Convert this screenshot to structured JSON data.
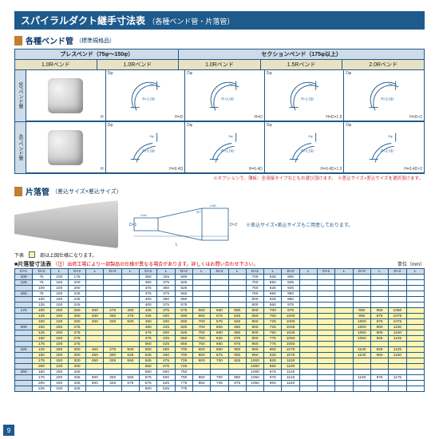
{
  "page_number": "9",
  "colors": {
    "brand_blue": "#1e5a8c",
    "accent_ochre": "#c08030",
    "header_cream": "#e8e2c4",
    "header_blue": "#cddce8",
    "highlight_yellow": "#fff4b0",
    "warn_red": "#c00"
  },
  "title": "スパイラルダクト継手寸法表",
  "subtitle": "（各種ベンド管・片落管）",
  "section_bend": {
    "title": "各種ベンド管",
    "note": "（標準規格品）",
    "group1": {
      "label": "プレスベンド（75φ〜150φ）",
      "cols": [
        {
          "sub": "1.0Rベンド"
        },
        {
          "sub": "1.0Rベンド"
        }
      ]
    },
    "group2": {
      "label": "セクションベンド（175φ以上）",
      "cols": [
        {
          "sub": "1.0Rベンド"
        },
        {
          "sub": "1.5Rベンド"
        },
        {
          "sub": "2.0Rベンド"
        }
      ]
    },
    "row_labels": [
      "90°ベンド管",
      "45°ベンド管"
    ],
    "cells": {
      "r90": [
        {
          "type": "photo",
          "toplab": "",
          "sub": "H"
        },
        {
          "type": "draw",
          "param": "R=1.0D",
          "sub": "H=D"
        },
        {
          "type": "draw",
          "param": "R=1.0D",
          "sub": "H=D"
        },
        {
          "type": "draw",
          "param": "R=1.5D",
          "sub": "H=D×1.5"
        },
        {
          "type": "draw",
          "param": "R=2.0D",
          "sub": "H=D×2"
        }
      ],
      "r45": [
        {
          "type": "photo",
          "toplab": "",
          "sub": "H"
        },
        {
          "type": "draw",
          "param": "R=1.0D",
          "sub": "H=0.4D"
        },
        {
          "type": "draw",
          "param": "R=1.0D",
          "sub": "H=0.4D"
        },
        {
          "type": "draw",
          "param": "R=1.5D",
          "sub": "H=0.4D×1.5"
        },
        {
          "type": "draw",
          "param": "R=2.0D",
          "sub": "H=0.4D×2"
        }
      ]
    },
    "foot_note": "※オプションで、薄板：全溶接タイプなどもお選び頂けます。　※差込サイズ×差込サイズを選択頂けます。"
  },
  "section_reducer": {
    "title": "片落管",
    "note": "（差込サイズ×差込サイズ）",
    "legend_label": "下表",
    "legend_note": "部は上図仕様になります。",
    "side_note": "※差込サイズ×差込サイズもご用意しております。",
    "diagram_labels": {
      "D1": "D×1",
      "D2": "D×2",
      "L": "L",
      "l1": "l=50",
      "l2": "l=50",
      "deg": "20°"
    }
  },
  "table": {
    "title": "■片落管寸法表",
    "warn": "（注）出荷工場により一部製品の仕様が異なる場合があります。詳しくはお問い合わせ下さい。",
    "unit": "単位（mm）",
    "col_groups": 6,
    "heads": [
      "D×1",
      "D×2",
      "L"
    ],
    "rows": [
      {
        "d1": "100",
        "hl": 0,
        "cells": [
          "75",
          "100",
          "175",
          "",
          "",
          "",
          "350",
          "325",
          "500",
          "",
          "",
          "",
          "700",
          "625",
          "900",
          "",
          "",
          "",
          "",
          "",
          "",
          ""
        ]
      },
      {
        "d1": "125",
        "hl": 0,
        "cells": [
          "75",
          "150",
          "200",
          "",
          "",
          "",
          "350",
          "375",
          "525",
          "",
          "",
          "",
          "700",
          "650",
          "925",
          "",
          "",
          "",
          "",
          "",
          "",
          ""
        ]
      },
      {
        "d1": "",
        "hl": 0,
        "cells": [
          "100",
          "100",
          "200",
          "",
          "",
          "",
          "375",
          "350",
          "525",
          "",
          "",
          "",
          "750",
          "625",
          "925",
          "",
          "",
          "",
          "",
          "",
          "",
          ""
        ]
      },
      {
        "d1": "150",
        "hl": 0,
        "cells": [
          "75",
          "200",
          "225",
          "",
          "",
          "",
          "375",
          "375",
          "550",
          "",
          "",
          "",
          "750",
          "650",
          "950",
          "",
          "",
          "",
          "",
          "",
          "",
          ""
        ]
      },
      {
        "d1": "",
        "hl": 0,
        "cells": [
          "100",
          "150",
          "225",
          "",
          "",
          "",
          "400",
          "350",
          "550",
          "",
          "",
          "",
          "800",
          "625",
          "950",
          "",
          "",
          "",
          "",
          "",
          "",
          ""
        ]
      },
      {
        "d1": "",
        "hl": 0,
        "cells": [
          "125",
          "100",
          "225",
          "",
          "",
          "",
          "400",
          "375",
          "575",
          "",
          "",
          "",
          "800",
          "650",
          "975",
          "",
          "",
          "",
          "",
          "",
          "",
          ""
        ]
      },
      {
        "d1": "175",
        "hl": 1,
        "cells": [
          "100",
          "200",
          "250",
          "400",
          "275",
          "450",
          "425",
          "375",
          "575",
          "650",
          "550",
          "800",
          "800",
          "700",
          "975",
          "",
          "",
          "",
          "950",
          "850",
          "1050",
          ""
        ]
      },
      {
        "d1": "",
        "hl": 1,
        "cells": [
          "125",
          "150",
          "250",
          "400",
          "300",
          "475",
          "425",
          "400",
          "600",
          "650",
          "575",
          "825",
          "850",
          "700",
          "1000",
          "",
          "",
          "",
          "950",
          "875",
          "1075",
          ""
        ]
      },
      {
        "d1": "",
        "hl": 1,
        "cells": [
          "150",
          "100",
          "250",
          "400",
          "325",
          "500",
          "450",
          "400",
          "600",
          "700",
          "575",
          "825",
          "850",
          "725",
          "1000",
          "",
          "",
          "",
          "1000",
          "875",
          "1075",
          ""
        ]
      },
      {
        "d1": "200",
        "hl": 1,
        "cells": [
          "100",
          "250",
          "275",
          "",
          "",
          "",
          "450",
          "425",
          "625",
          "700",
          "600",
          "850",
          "900",
          "725",
          "1025",
          "",
          "",
          "",
          "1000",
          "900",
          "1100",
          ""
        ]
      },
      {
        "d1": "",
        "hl": 1,
        "cells": [
          "125",
          "200",
          "275",
          "",
          "",
          "",
          "475",
          "400",
          "625",
          "750",
          "600",
          "850",
          "900",
          "750",
          "1025",
          "",
          "",
          "",
          "1050",
          "900",
          "1100",
          ""
        ]
      },
      {
        "d1": "",
        "hl": 1,
        "cells": [
          "150",
          "150",
          "275",
          "",
          "",
          "",
          "475",
          "425",
          "650",
          "750",
          "625",
          "875",
          "900",
          "775",
          "1050",
          "",
          "",
          "",
          "1050",
          "925",
          "1125",
          ""
        ]
      },
      {
        "d1": "",
        "hl": 1,
        "cells": [
          "175",
          "100",
          "275",
          "",
          "",
          "",
          "500",
          "425",
          "650",
          "750",
          "650",
          "875",
          "950",
          "775",
          "1050",
          "",
          "",
          "",
          "",
          "",
          "",
          ""
        ]
      },
      {
        "d1": "225",
        "hl": 1,
        "cells": [
          "125",
          "250",
          "300",
          "450",
          "275",
          "500",
          "500",
          "450",
          "700",
          "800",
          "650",
          "900",
          "950",
          "800",
          "1075",
          "",
          "",
          "",
          "1100",
          "925",
          "1125",
          ""
        ]
      },
      {
        "d1": "",
        "hl": 1,
        "cells": [
          "150",
          "200",
          "300",
          "450",
          "300",
          "525",
          "525",
          "450",
          "700",
          "800",
          "675",
          "900",
          "950",
          "825",
          "1075",
          "",
          "",
          "",
          "1100",
          "950",
          "1150",
          ""
        ]
      },
      {
        "d1": "",
        "hl": 1,
        "cells": [
          "175",
          "150",
          "300",
          "450",
          "325",
          "550",
          "525",
          "475",
          "725",
          "800",
          "700",
          "925",
          "1000",
          "825",
          "1100",
          "",
          "",
          "",
          "",
          "",
          "",
          ""
        ]
      },
      {
        "d1": "",
        "hl": 1,
        "cells": [
          "200",
          "100",
          "300",
          "",
          "",
          "",
          "550",
          "475",
          "725",
          "",
          "",
          "",
          "1000",
          "850",
          "1100",
          "",
          "",
          "",
          "",
          "",
          "",
          ""
        ]
      },
      {
        "d1": "250",
        "hl": 0,
        "cells": [
          "150",
          "250",
          "325",
          "",
          "",
          "",
          "550",
          "500",
          "750",
          "",
          "",
          "",
          "1000",
          "875",
          "1125",
          "",
          "",
          "",
          "",
          "",
          "",
          ""
        ]
      },
      {
        "d1": "",
        "hl": 0,
        "cells": [
          "175",
          "200",
          "325",
          "500",
          "300",
          "550",
          "575",
          "500",
          "750",
          "850",
          "700",
          "950",
          "1050",
          "875",
          "1125",
          "",
          "",
          "",
          "1150",
          "975",
          "1175",
          ""
        ]
      },
      {
        "d1": "",
        "hl": 0,
        "cells": [
          "200",
          "150",
          "325",
          "500",
          "325",
          "575",
          "575",
          "525",
          "775",
          "850",
          "725",
          "975",
          "1050",
          "900",
          "1150",
          "",
          "",
          "",
          "",
          "",
          "",
          ""
        ]
      },
      {
        "d1": "",
        "hl": 0,
        "cells": [
          "225",
          "100",
          "325",
          "",
          "",
          "",
          "600",
          "525",
          "775",
          "",
          "",
          "",
          "",
          "",
          "",
          "",
          "",
          "",
          "",
          "",
          "",
          ""
        ]
      }
    ]
  }
}
